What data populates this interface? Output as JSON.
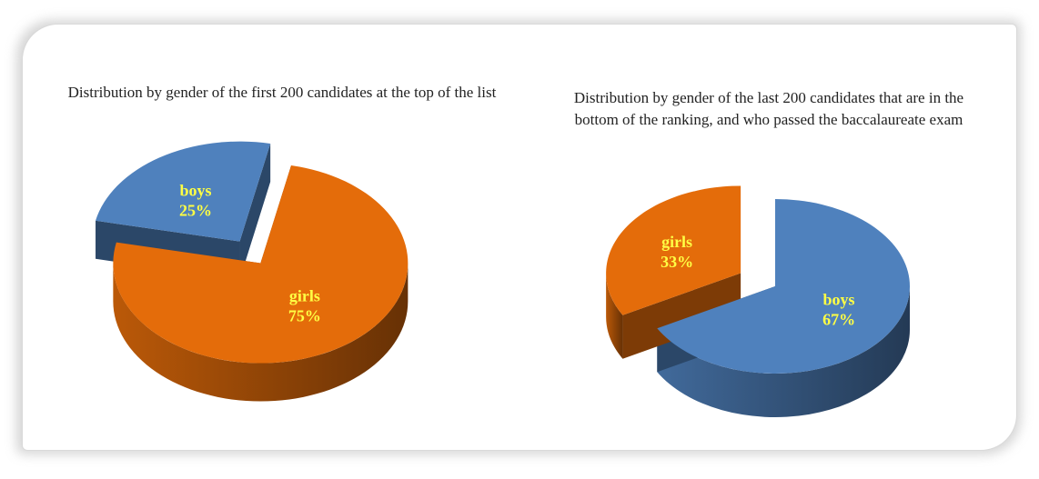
{
  "chart_data": [
    {
      "type": "pie",
      "style": "3d-exploded",
      "title": "Distribution  by gender of the first 200 candidates at the top of the list",
      "slices": [
        {
          "label": "girls",
          "value": 75,
          "percent_label": "75%",
          "color": "#e46c0a"
        },
        {
          "label": "boys",
          "value": 25,
          "percent_label": "25%",
          "color": "#4f81bd"
        }
      ]
    },
    {
      "type": "pie",
      "style": "3d-exploded",
      "title_lines": [
        "Distribution  by gender of the last 200 candidates that are in the",
        "bottom of the ranking, and who passed the baccalaureate exam"
      ],
      "slices": [
        {
          "label": "boys",
          "value": 67,
          "percent_label": "67%",
          "color": "#4f81bd"
        },
        {
          "label": "girls",
          "value": 33,
          "percent_label": "33%",
          "color": "#e46c0a"
        }
      ]
    }
  ],
  "label_color": "#ffff44"
}
